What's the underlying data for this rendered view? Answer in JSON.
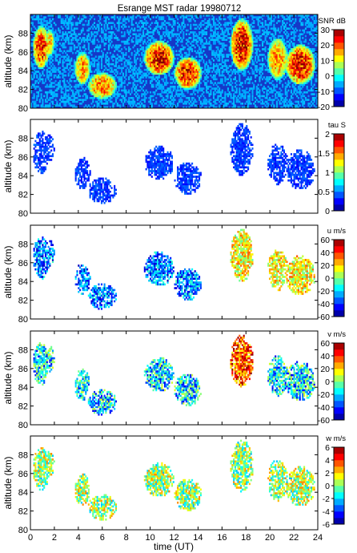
{
  "chart_data": {
    "type": "heatmap",
    "title": "Esrange MST radar 19980712",
    "xlabel": "time (UT)",
    "xlim": [
      0,
      24
    ],
    "x_ticks": [
      "0",
      "2",
      "4",
      "6",
      "8",
      "10",
      "12",
      "14",
      "16",
      "18",
      "20",
      "22",
      "24"
    ],
    "ylabel": "altitude (km)",
    "ylim": [
      80,
      90
    ],
    "y_ticks": [
      "80",
      "82",
      "84",
      "86",
      "88"
    ],
    "grid": false,
    "colormap": "jet",
    "echo_regions": [
      {
        "t": [
          0.2,
          1.6
        ],
        "h": [
          84.2,
          88.8
        ],
        "strength": 0.85
      },
      {
        "t": [
          1.2,
          2.0
        ],
        "h": [
          85.5,
          88.5
        ],
        "strength": 0.6
      },
      {
        "t": [
          3.7,
          5.0
        ],
        "h": [
          82.5,
          86.0
        ],
        "strength": 0.7
      },
      {
        "t": [
          4.8,
          7.2
        ],
        "h": [
          81.0,
          83.8
        ],
        "strength": 0.75
      },
      {
        "t": [
          9.5,
          12.0
        ],
        "h": [
          83.5,
          87.2
        ],
        "strength": 0.95
      },
      {
        "t": [
          12.0,
          14.3
        ],
        "h": [
          82.0,
          85.5
        ],
        "strength": 0.9
      },
      {
        "t": [
          16.7,
          18.6
        ],
        "h": [
          84.0,
          89.6
        ],
        "strength": 0.95
      },
      {
        "t": [
          19.8,
          21.5
        ],
        "h": [
          83.0,
          87.5
        ],
        "strength": 0.7
      },
      {
        "t": [
          21.3,
          23.8
        ],
        "h": [
          82.5,
          86.8
        ],
        "strength": 0.95
      }
    ],
    "panels": [
      {
        "name": "SNR",
        "colorbar_label": "SNR dB",
        "clim": [
          -20,
          30
        ],
        "colorbar_ticks": [
          "-20",
          "-10",
          "0",
          "10",
          "20",
          "30"
        ],
        "filled_background": true
      },
      {
        "name": "tau",
        "colorbar_label": "tau S",
        "clim": [
          0,
          2
        ],
        "colorbar_ticks": [
          "0",
          "0.5",
          "1",
          "1.5",
          "2"
        ],
        "filled_background": false
      },
      {
        "name": "u",
        "colorbar_label": "u m/s",
        "clim": [
          -60,
          60
        ],
        "colorbar_ticks": [
          "-60",
          "-40",
          "-20",
          "0",
          "20",
          "40",
          "60"
        ],
        "filled_background": false
      },
      {
        "name": "v",
        "colorbar_label": "v m/s",
        "clim": [
          -60,
          60
        ],
        "colorbar_ticks": [
          "-60",
          "-40",
          "-20",
          "0",
          "20",
          "40",
          "60"
        ],
        "filled_background": false
      },
      {
        "name": "w",
        "colorbar_label": "w m/s",
        "clim": [
          -6,
          6
        ],
        "colorbar_ticks": [
          "-6",
          "-4",
          "-2",
          "0",
          "2",
          "4",
          "6"
        ],
        "filled_background": false
      }
    ]
  }
}
